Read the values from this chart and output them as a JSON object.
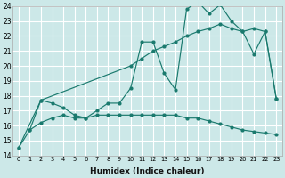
{
  "xlabel": "Humidex (Indice chaleur)",
  "bg_color": "#cce8e8",
  "grid_color": "#ffffff",
  "line_color": "#1a7a6e",
  "xlim": [
    -0.5,
    23.5
  ],
  "ylim": [
    14,
    24
  ],
  "xticks": [
    0,
    1,
    2,
    3,
    4,
    5,
    6,
    7,
    8,
    9,
    10,
    11,
    12,
    13,
    14,
    15,
    16,
    17,
    18,
    19,
    20,
    21,
    22,
    23
  ],
  "yticks": [
    14,
    15,
    16,
    17,
    18,
    19,
    20,
    21,
    22,
    23,
    24
  ],
  "line1_x": [
    0,
    1,
    2,
    3,
    4,
    5,
    6,
    7,
    8,
    9,
    10,
    11,
    12,
    13,
    14,
    15,
    16,
    17,
    18,
    19,
    20,
    21,
    22,
    23
  ],
  "line1_y": [
    14.5,
    15.7,
    17.7,
    17.5,
    17.2,
    16.7,
    16.5,
    17.0,
    17.5,
    17.5,
    18.5,
    21.6,
    21.6,
    19.5,
    18.4,
    23.8,
    24.3,
    23.5,
    24.1,
    23.0,
    22.3,
    20.8,
    22.3,
    17.8
  ],
  "line2_x": [
    0,
    2,
    10,
    11,
    12,
    13,
    14,
    15,
    16,
    17,
    18,
    19,
    20,
    21,
    22,
    23
  ],
  "line2_y": [
    14.5,
    17.7,
    20.0,
    20.5,
    21.0,
    21.3,
    21.6,
    22.0,
    22.3,
    22.5,
    22.8,
    22.5,
    22.3,
    22.5,
    22.3,
    17.8
  ],
  "line3_x": [
    1,
    2,
    3,
    4,
    5,
    6,
    7,
    8,
    9,
    10,
    11,
    12,
    13,
    14,
    15,
    16,
    17,
    18,
    19,
    20,
    21,
    22,
    23
  ],
  "line3_y": [
    15.7,
    16.2,
    16.5,
    16.7,
    16.5,
    16.5,
    16.7,
    16.7,
    16.7,
    16.7,
    16.7,
    16.7,
    16.7,
    16.7,
    16.5,
    16.5,
    16.3,
    16.1,
    15.9,
    15.7,
    15.6,
    15.5,
    15.4
  ]
}
